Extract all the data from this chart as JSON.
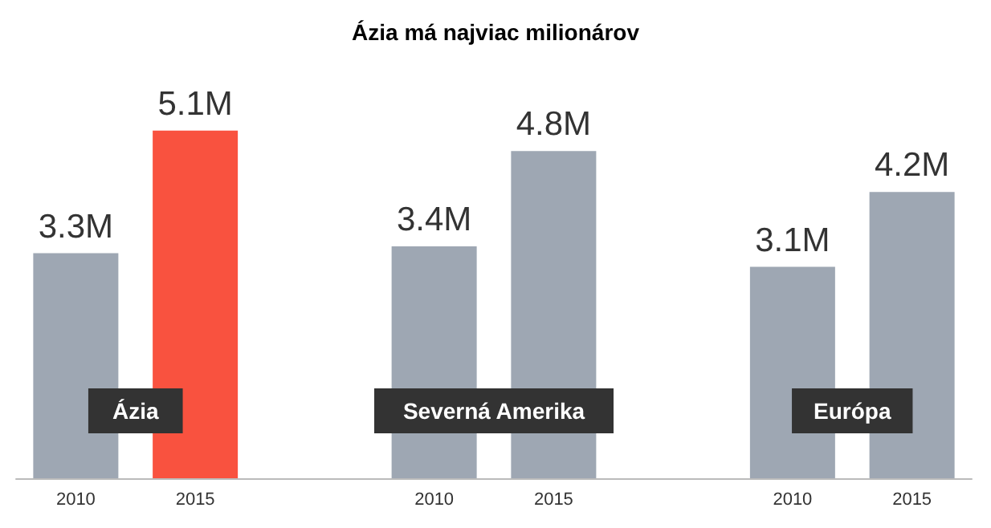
{
  "chart_data": {
    "type": "bar",
    "title": "Ázia má najviac milionárov",
    "categories": [
      "2010",
      "2015",
      null,
      "2010",
      "2015",
      null,
      "2010",
      "2015"
    ],
    "values": [
      3.3,
      5.1,
      null,
      3.4,
      4.8,
      null,
      3.1,
      4.2
    ],
    "value_labels": [
      "3.3M",
      "5.1M",
      null,
      "3.4M",
      "4.8M",
      null,
      "3.1M",
      "4.2M"
    ],
    "colors": [
      "#9ea7b3",
      "#f9523f",
      null,
      "#9ea7b3",
      "#9ea7b3",
      null,
      "#9ea7b3",
      "#9ea7b3"
    ],
    "annotations": [
      "Ázia",
      "Severná Amerika",
      "Európa"
    ],
    "grid": false
  }
}
